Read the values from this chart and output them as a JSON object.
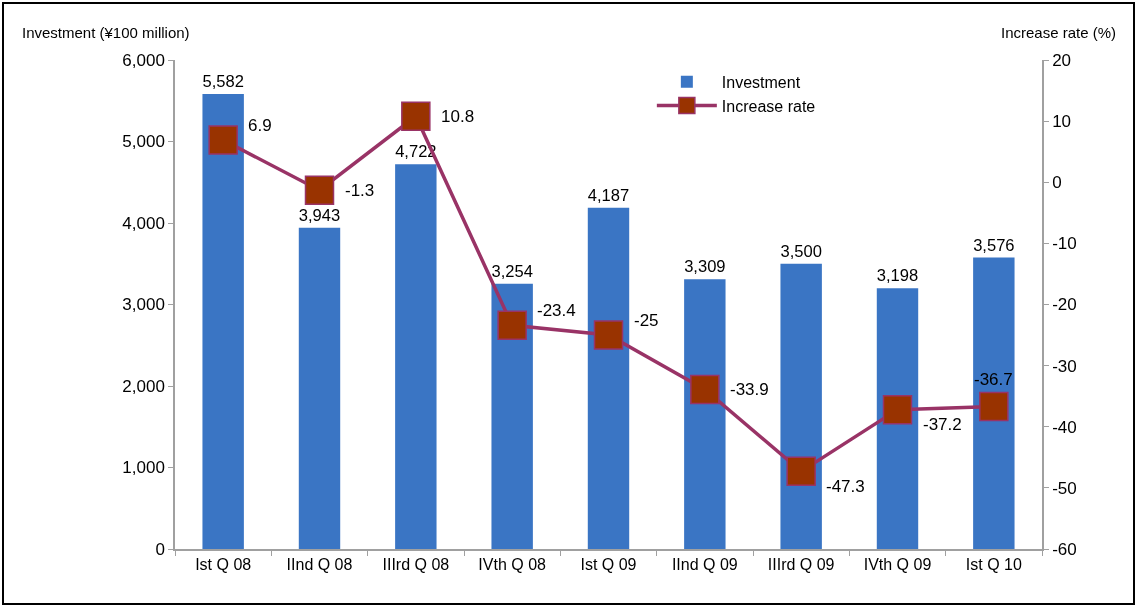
{
  "chart_data": {
    "type": "bar",
    "categories": [
      "Ist Q 08",
      "IInd Q 08",
      "IIIrd Q 08",
      "IVth Q 08",
      "Ist Q 09",
      "IInd Q 09",
      "IIIrd Q 09",
      "IVth Q 09",
      "Ist Q 10"
    ],
    "series": [
      {
        "name": "Investment",
        "color": "#3a75c4",
        "values": [
          5582,
          3943,
          4722,
          3254,
          4187,
          3309,
          3500,
          3198,
          3576
        ],
        "value_labels": [
          "5,582",
          "3,943",
          "4,722",
          "3,254",
          "4,187",
          "3,309",
          "3,500",
          "3,198",
          "3,576"
        ]
      },
      {
        "name": "Increase rate",
        "type": "line",
        "axis": "y2",
        "color": "#993366",
        "colors": [
          "#993300",
          "#993300",
          "#993300",
          "#993300",
          "#993300",
          "#993300",
          "#993300",
          "#993300",
          "#993300"
        ],
        "values": [
          6.9,
          -1.3,
          10.8,
          -23.4,
          -25,
          -33.9,
          -47.3,
          -37.2,
          -36.7
        ],
        "value_labels": [
          "6.9",
          "-1.3",
          "10.8",
          "-23.4",
          "-25",
          "-33.9",
          "-47.3",
          "-37.2",
          "-36.7"
        ]
      }
    ],
    "ylabel": "Investment (¥100 million)",
    "y2label": "Increase rate (%)",
    "ylim": [
      0,
      6000
    ],
    "yticks": [
      {
        "value": 0,
        "label": "0"
      },
      {
        "value": 1000,
        "label": "1,000"
      },
      {
        "value": 2000,
        "label": "2,000"
      },
      {
        "value": 3000,
        "label": "3,000"
      },
      {
        "value": 4000,
        "label": "4,000"
      },
      {
        "value": 5000,
        "label": "5,000"
      },
      {
        "value": 6000,
        "label": "6,000"
      }
    ],
    "y2lim": [
      -60,
      20
    ],
    "y2ticks": [
      -60,
      -50,
      -40,
      -30,
      -20,
      -10,
      0,
      10,
      20
    ],
    "legend": "top right",
    "marker": "square",
    "line_style": "solid"
  }
}
